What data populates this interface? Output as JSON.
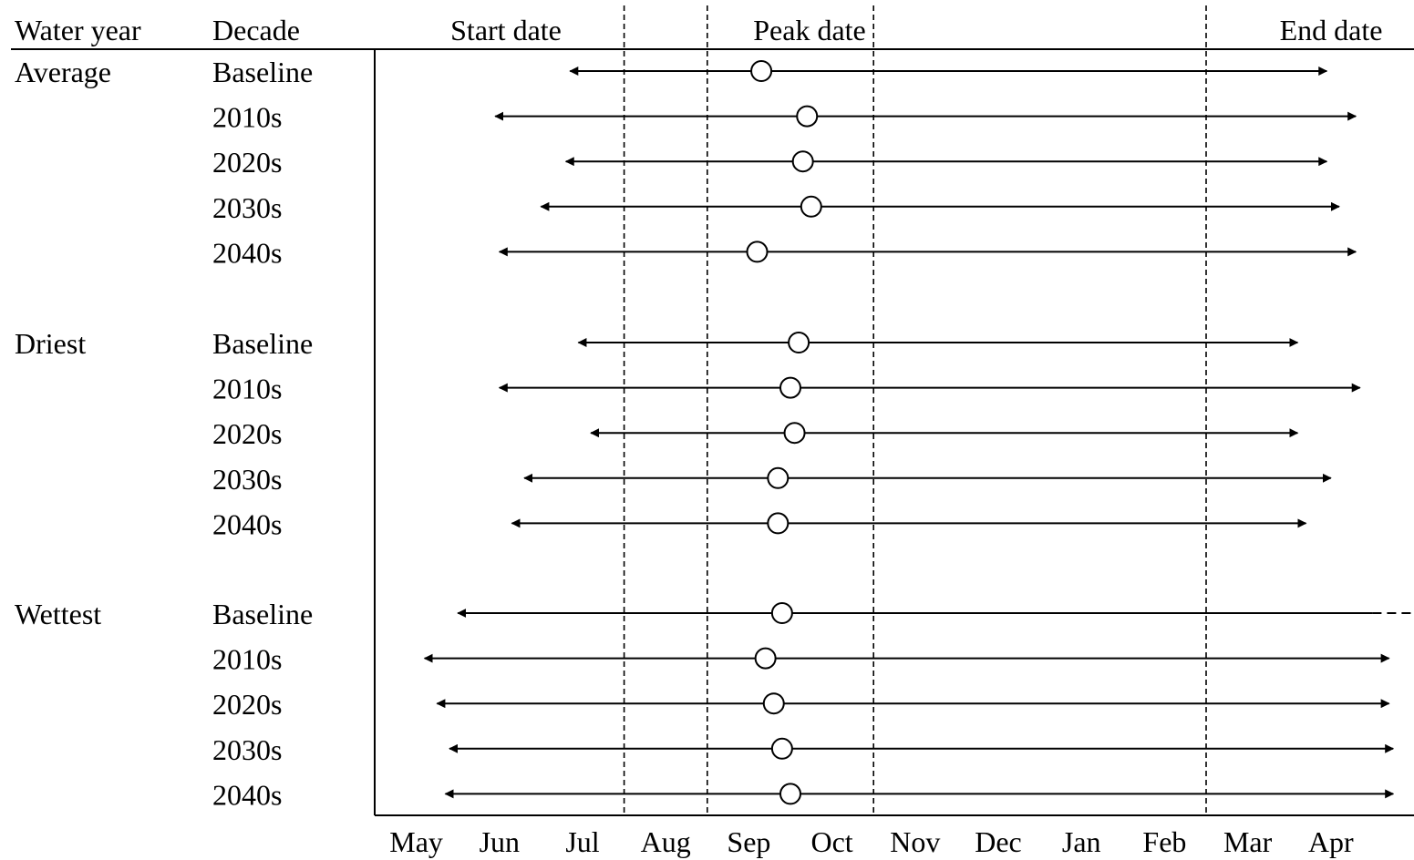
{
  "chart_data": {
    "type": "range-timeline",
    "headers": {
      "water_year": "Water year",
      "decade": "Decade",
      "start": "Start date",
      "peak": "Peak date",
      "end": "End date"
    },
    "x_ticks": [
      "May",
      "Jun",
      "Jul",
      "Aug",
      "Sep",
      "Oct",
      "Nov",
      "Dec",
      "Jan",
      "Feb",
      "Mar",
      "Apr"
    ],
    "groups": [
      {
        "name": "Average",
        "rows": [
          {
            "decade": "Baseline",
            "start": 2.35,
            "peak": 4.65,
            "end": 11.45,
            "end_extends": false
          },
          {
            "decade": "2010s",
            "start": 1.45,
            "peak": 5.2,
            "end": 11.8,
            "end_extends": false
          },
          {
            "decade": "2020s",
            "start": 2.3,
            "peak": 5.15,
            "end": 11.45,
            "end_extends": false
          },
          {
            "decade": "2030s",
            "start": 2.0,
            "peak": 5.25,
            "end": 11.6,
            "end_extends": false
          },
          {
            "decade": "2040s",
            "start": 1.5,
            "peak": 4.6,
            "end": 11.8,
            "end_extends": false
          }
        ]
      },
      {
        "name": "Driest",
        "rows": [
          {
            "decade": "Baseline",
            "start": 2.45,
            "peak": 5.1,
            "end": 11.1,
            "end_extends": false
          },
          {
            "decade": "2010s",
            "start": 1.5,
            "peak": 5.0,
            "end": 11.85,
            "end_extends": false
          },
          {
            "decade": "2020s",
            "start": 2.6,
            "peak": 5.05,
            "end": 11.1,
            "end_extends": false
          },
          {
            "decade": "2030s",
            "start": 1.8,
            "peak": 4.85,
            "end": 11.5,
            "end_extends": false
          },
          {
            "decade": "2040s",
            "start": 1.65,
            "peak": 4.85,
            "end": 11.2,
            "end_extends": false
          }
        ]
      },
      {
        "name": "Wettest",
        "rows": [
          {
            "decade": "Baseline",
            "start": 1.0,
            "peak": 4.9,
            "end": 12.0,
            "end_extends": true
          },
          {
            "decade": "2010s",
            "start": 0.6,
            "peak": 4.7,
            "end": 12.2,
            "end_extends": false
          },
          {
            "decade": "2020s",
            "start": 0.75,
            "peak": 4.8,
            "end": 12.2,
            "end_extends": false
          },
          {
            "decade": "2030s",
            "start": 0.9,
            "peak": 4.9,
            "end": 12.25,
            "end_extends": false
          },
          {
            "decade": "2040s",
            "start": 0.85,
            "peak": 5.0,
            "end": 12.25,
            "end_extends": false
          }
        ]
      }
    ],
    "reference_lines_x": [
      3.0,
      4.0,
      6.0,
      10.0
    ],
    "xlim": [
      0,
      12.5
    ]
  }
}
